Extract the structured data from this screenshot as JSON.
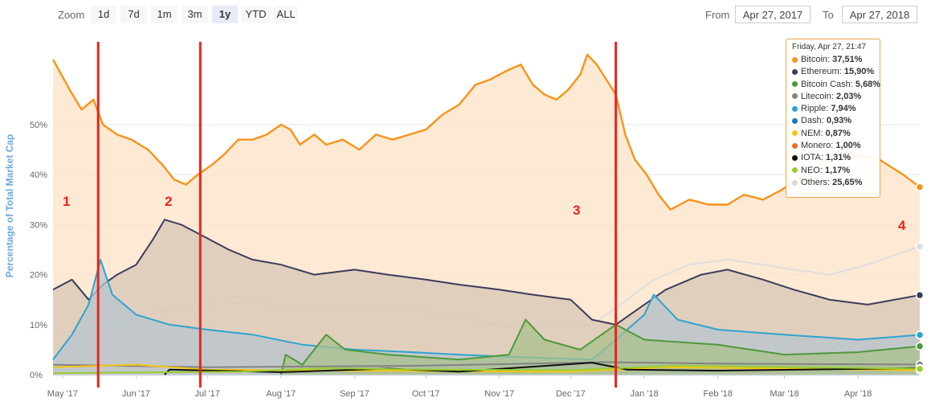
{
  "toolbar": {
    "zoom_label": "Zoom",
    "zoom_buttons": [
      "1d",
      "7d",
      "1m",
      "3m",
      "1y",
      "YTD",
      "ALL"
    ],
    "active_zoom": "1y",
    "from_label": "From",
    "from_value": "Apr 27, 2017",
    "to_label": "To",
    "to_value": "Apr 27, 2018"
  },
  "tooltip": {
    "title": "Friday, Apr 27, 21:47",
    "rows": [
      {
        "name": "Bitcoin",
        "value": "37,51%",
        "color": "#f7931a"
      },
      {
        "name": "Ethereum",
        "value": "15,90%",
        "color": "#3c3c5d"
      },
      {
        "name": "Bitcoin Cash",
        "value": "5,68%",
        "color": "#4d9a3a"
      },
      {
        "name": "Litecoin",
        "value": "2,03%",
        "color": "#838383"
      },
      {
        "name": "Ripple",
        "value": "7,94%",
        "color": "#2ea4d0"
      },
      {
        "name": "Dash",
        "value": "0,93%",
        "color": "#1c75bc"
      },
      {
        "name": "NEM",
        "value": "0,87%",
        "color": "#f5c518"
      },
      {
        "name": "Monero",
        "value": "1,00%",
        "color": "#f26822"
      },
      {
        "name": "IOTA",
        "value": "1,31%",
        "color": "#111111"
      },
      {
        "name": "NEO",
        "value": "1,17%",
        "color": "#9acd32"
      },
      {
        "name": "Others",
        "value": "25,65%",
        "color": "#d9d9d9"
      }
    ]
  },
  "annotations": [
    "1",
    "2",
    "3",
    "4"
  ],
  "chart_data": {
    "type": "area",
    "title": "",
    "xlabel": "",
    "ylabel": "Percentage of Total Market Cap",
    "y_ticks": [
      "0%",
      "10%",
      "20%",
      "30%",
      "40%",
      "50%"
    ],
    "x_ticks": [
      "May '17",
      "Jun '17",
      "Jul '17",
      "Aug '17",
      "Sep '17",
      "Oct '17",
      "Nov '17",
      "Dec '17",
      "Jan '18",
      "Feb '18",
      "Mar '18",
      "Apr '18"
    ],
    "ylim": [
      0,
      65
    ],
    "x_range": [
      "2017-04-27",
      "2018-04-27"
    ],
    "grid": true,
    "markers": [
      {
        "label": "1",
        "date": "2017-05-16"
      },
      {
        "label": "2",
        "date": "2017-06-28"
      },
      {
        "label": "3",
        "date": "2017-12-20"
      }
    ],
    "series": [
      {
        "name": "Bitcoin",
        "color": "#f7931a",
        "fill": "#fde3c6",
        "points": [
          [
            "2017-04-27",
            63
          ],
          [
            "2017-05-04",
            57
          ],
          [
            "2017-05-09",
            53
          ],
          [
            "2017-05-14",
            55
          ],
          [
            "2017-05-18",
            50
          ],
          [
            "2017-05-24",
            48
          ],
          [
            "2017-05-30",
            47
          ],
          [
            "2017-06-06",
            45
          ],
          [
            "2017-06-12",
            42
          ],
          [
            "2017-06-17",
            39
          ],
          [
            "2017-06-22",
            38
          ],
          [
            "2017-06-27",
            40
          ],
          [
            "2017-07-03",
            42
          ],
          [
            "2017-07-08",
            44
          ],
          [
            "2017-07-14",
            47
          ],
          [
            "2017-07-20",
            47
          ],
          [
            "2017-07-26",
            48
          ],
          [
            "2017-08-01",
            50
          ],
          [
            "2017-08-05",
            49
          ],
          [
            "2017-08-09",
            46
          ],
          [
            "2017-08-15",
            48
          ],
          [
            "2017-08-20",
            46
          ],
          [
            "2017-08-27",
            47
          ],
          [
            "2017-09-03",
            45
          ],
          [
            "2017-09-10",
            48
          ],
          [
            "2017-09-17",
            47
          ],
          [
            "2017-09-24",
            48
          ],
          [
            "2017-10-01",
            49
          ],
          [
            "2017-10-08",
            52
          ],
          [
            "2017-10-15",
            54
          ],
          [
            "2017-10-22",
            58
          ],
          [
            "2017-10-28",
            59
          ],
          [
            "2017-11-05",
            61
          ],
          [
            "2017-11-10",
            62
          ],
          [
            "2017-11-15",
            58
          ],
          [
            "2017-11-20",
            56
          ],
          [
            "2017-11-25",
            55
          ],
          [
            "2017-11-30",
            57
          ],
          [
            "2017-12-05",
            60
          ],
          [
            "2017-12-08",
            64
          ],
          [
            "2017-12-12",
            62
          ],
          [
            "2017-12-16",
            59
          ],
          [
            "2017-12-20",
            56
          ],
          [
            "2017-12-24",
            48
          ],
          [
            "2017-12-28",
            43
          ],
          [
            "2018-01-02",
            40
          ],
          [
            "2018-01-07",
            36
          ],
          [
            "2018-01-12",
            33
          ],
          [
            "2018-01-20",
            35
          ],
          [
            "2018-01-28",
            34
          ],
          [
            "2018-02-05",
            34
          ],
          [
            "2018-02-12",
            36
          ],
          [
            "2018-02-20",
            35
          ],
          [
            "2018-02-28",
            37
          ],
          [
            "2018-03-06",
            39
          ],
          [
            "2018-03-12",
            40
          ],
          [
            "2018-03-18",
            43
          ],
          [
            "2018-03-25",
            45
          ],
          [
            "2018-04-01",
            44
          ],
          [
            "2018-04-10",
            43
          ],
          [
            "2018-04-20",
            40
          ],
          [
            "2018-04-27",
            37.5
          ]
        ]
      },
      {
        "name": "Others",
        "color": "#dedede",
        "fill": "none",
        "points": [
          [
            "2017-04-27",
            8
          ],
          [
            "2017-05-15",
            9.5
          ],
          [
            "2017-06-01",
            11.5
          ],
          [
            "2017-06-15",
            13
          ],
          [
            "2017-07-01",
            14
          ],
          [
            "2017-07-20",
            14.5
          ],
          [
            "2017-08-10",
            13
          ],
          [
            "2017-09-01",
            13.5
          ],
          [
            "2017-09-25",
            13
          ],
          [
            "2017-10-15",
            11.5
          ],
          [
            "2017-11-05",
            9.5
          ],
          [
            "2017-11-25",
            10
          ],
          [
            "2017-12-10",
            10
          ],
          [
            "2017-12-22",
            14
          ],
          [
            "2018-01-05",
            19
          ],
          [
            "2018-01-20",
            22
          ],
          [
            "2018-02-05",
            23
          ],
          [
            "2018-02-20",
            22
          ],
          [
            "2018-03-05",
            21
          ],
          [
            "2018-03-20",
            20
          ],
          [
            "2018-04-05",
            22
          ],
          [
            "2018-04-27",
            25.65
          ]
        ]
      },
      {
        "name": "Ethereum",
        "color": "#3c3c5d",
        "fill": "#d7c5b5",
        "points": [
          [
            "2017-04-27",
            17
          ],
          [
            "2017-05-05",
            19
          ],
          [
            "2017-05-12",
            15
          ],
          [
            "2017-05-18",
            18
          ],
          [
            "2017-05-24",
            20
          ],
          [
            "2017-06-01",
            22
          ],
          [
            "2017-06-08",
            27
          ],
          [
            "2017-06-13",
            31
          ],
          [
            "2017-06-20",
            30
          ],
          [
            "2017-06-28",
            28
          ],
          [
            "2017-07-10",
            25
          ],
          [
            "2017-07-20",
            23
          ],
          [
            "2017-08-01",
            22
          ],
          [
            "2017-08-15",
            20
          ],
          [
            "2017-09-01",
            21
          ],
          [
            "2017-09-15",
            20
          ],
          [
            "2017-10-01",
            19
          ],
          [
            "2017-10-15",
            18
          ],
          [
            "2017-11-01",
            17
          ],
          [
            "2017-11-15",
            16
          ],
          [
            "2017-12-01",
            15
          ],
          [
            "2017-12-10",
            11
          ],
          [
            "2017-12-20",
            10
          ],
          [
            "2018-01-01",
            14
          ],
          [
            "2018-01-10",
            17
          ],
          [
            "2018-01-25",
            20
          ],
          [
            "2018-02-05",
            21
          ],
          [
            "2018-02-20",
            19
          ],
          [
            "2018-03-05",
            17
          ],
          [
            "2018-03-20",
            15
          ],
          [
            "2018-04-05",
            14
          ],
          [
            "2018-04-27",
            15.9
          ]
        ]
      },
      {
        "name": "Ripple",
        "color": "#2ea4d0",
        "fill": "#b7c5cf",
        "points": [
          [
            "2017-04-27",
            3
          ],
          [
            "2017-05-05",
            8
          ],
          [
            "2017-05-12",
            14
          ],
          [
            "2017-05-17",
            23
          ],
          [
            "2017-05-22",
            16
          ],
          [
            "2017-06-01",
            12
          ],
          [
            "2017-06-15",
            10
          ],
          [
            "2017-07-01",
            9
          ],
          [
            "2017-07-20",
            8
          ],
          [
            "2017-08-10",
            6
          ],
          [
            "2017-09-01",
            5
          ],
          [
            "2017-09-25",
            4.5
          ],
          [
            "2017-10-15",
            4
          ],
          [
            "2017-11-10",
            3.5
          ],
          [
            "2017-12-10",
            3
          ],
          [
            "2017-12-20",
            7
          ],
          [
            "2018-01-01",
            12
          ],
          [
            "2018-01-05",
            16
          ],
          [
            "2018-01-15",
            11
          ],
          [
            "2018-02-01",
            9
          ],
          [
            "2018-03-01",
            8
          ],
          [
            "2018-04-01",
            7
          ],
          [
            "2018-04-27",
            7.94
          ]
        ]
      },
      {
        "name": "Bitcoin Cash",
        "color": "#4d9a3a",
        "fill": "#a8c08c",
        "points": [
          [
            "2017-08-01",
            0
          ],
          [
            "2017-08-03",
            4
          ],
          [
            "2017-08-10",
            2
          ],
          [
            "2017-08-20",
            8
          ],
          [
            "2017-08-28",
            5
          ],
          [
            "2017-09-15",
            4
          ],
          [
            "2017-10-15",
            3
          ],
          [
            "2017-11-05",
            4
          ],
          [
            "2017-11-12",
            11
          ],
          [
            "2017-11-20",
            7
          ],
          [
            "2017-12-05",
            5
          ],
          [
            "2017-12-20",
            10
          ],
          [
            "2018-01-01",
            7
          ],
          [
            "2018-02-01",
            6
          ],
          [
            "2018-03-01",
            4
          ],
          [
            "2018-04-01",
            4.5
          ],
          [
            "2018-04-27",
            5.68
          ]
        ]
      },
      {
        "name": "Litecoin",
        "color": "#838383",
        "fill": "none",
        "points": [
          [
            "2017-04-27",
            2
          ],
          [
            "2017-07-01",
            1.5
          ],
          [
            "2017-10-01",
            1.8
          ],
          [
            "2017-12-15",
            2.5
          ],
          [
            "2018-02-01",
            2.2
          ],
          [
            "2018-04-27",
            2.03
          ]
        ]
      },
      {
        "name": "NEM",
        "color": "#f5c518",
        "fill": "none",
        "points": [
          [
            "2017-04-27",
            1.5
          ],
          [
            "2017-06-01",
            2
          ],
          [
            "2017-07-01",
            1
          ],
          [
            "2017-09-01",
            0.8
          ],
          [
            "2017-12-01",
            0.6
          ],
          [
            "2018-01-10",
            1.5
          ],
          [
            "2018-04-27",
            0.87
          ]
        ]
      },
      {
        "name": "IOTA",
        "color": "#111111",
        "fill": "none",
        "points": [
          [
            "2017-06-13",
            0
          ],
          [
            "2017-06-15",
            1
          ],
          [
            "2017-08-01",
            0.5
          ],
          [
            "2017-09-15",
            1.2
          ],
          [
            "2017-10-15",
            0.6
          ],
          [
            "2017-12-10",
            2.4
          ],
          [
            "2017-12-25",
            1
          ],
          [
            "2018-02-01",
            0.8
          ],
          [
            "2018-04-27",
            1.31
          ]
        ]
      },
      {
        "name": "NEO",
        "color": "#9acd32",
        "fill": "none",
        "points": [
          [
            "2017-04-27",
            0.3
          ],
          [
            "2017-07-15",
            0.6
          ],
          [
            "2017-08-20",
            1.3
          ],
          [
            "2017-10-01",
            1
          ],
          [
            "2017-12-01",
            0.9
          ],
          [
            "2018-01-15",
            1.8
          ],
          [
            "2018-04-27",
            1.17
          ]
        ]
      }
    ]
  }
}
